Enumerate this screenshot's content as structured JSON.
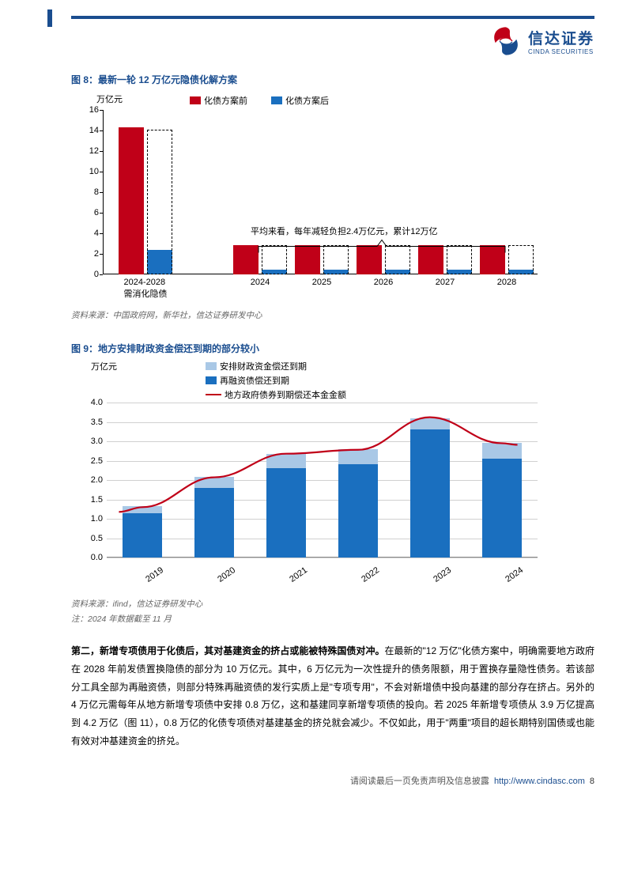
{
  "header": {
    "logo_cn": "信达证券",
    "logo_en": "CINDA SECURITIES",
    "logo_swirl_color1": "#c00018",
    "logo_swirl_color2": "#1a4d8f"
  },
  "fig8": {
    "title": "图 8：最新一轮 12 万亿元隐债化解方案",
    "y_unit": "万亿元",
    "legend": {
      "before": "化债方案前",
      "after": "化债方案后"
    },
    "colors": {
      "before": "#c00018",
      "after": "#1a6fbf",
      "dashed": "#000000"
    },
    "ylim": [
      0,
      16
    ],
    "ytick_step": 2,
    "categories": [
      "2024-2028\n需消化隐债",
      "2024",
      "2025",
      "2026",
      "2027",
      "2028"
    ],
    "before_values": [
      14.3,
      2.86,
      2.86,
      2.86,
      2.86,
      2.86
    ],
    "after_values": [
      2.4,
      0.5,
      0.5,
      0.5,
      0.5,
      0.5
    ],
    "dashed_values": [
      14.1,
      2.86,
      2.86,
      2.86,
      2.86,
      2.86
    ],
    "annotation": "平均来看，每年减轻负担2.4万亿元，累计12万亿",
    "source": "资料来源：中国政府网，新华社，信达证券研发中心"
  },
  "fig9": {
    "title": "图 9：地方安排财政资金偿还到期的部分较小",
    "y_unit": "万亿元",
    "legend": {
      "fiscal": "安排财政资金偿还到期",
      "refin": "再融资债偿还到期",
      "line": "地方政府债券到期偿还本金金额"
    },
    "colors": {
      "fiscal": "#a9c8e6",
      "refin": "#1a6fbf",
      "line": "#c00018"
    },
    "ylim": [
      0,
      4.0
    ],
    "ytick_step": 0.5,
    "categories": [
      "2019",
      "2020",
      "2021",
      "2022",
      "2023",
      "2024"
    ],
    "refin_values": [
      1.15,
      1.8,
      2.3,
      2.4,
      3.3,
      2.55
    ],
    "fiscal_values": [
      0.18,
      0.28,
      0.38,
      0.4,
      0.3,
      0.4
    ],
    "line_values": [
      1.3,
      2.07,
      2.68,
      2.78,
      3.62,
      2.95
    ],
    "source": "资料来源：ifind，信达证券研发中心",
    "note": "注：2024 年数据截至 11 月"
  },
  "body": {
    "bold": "第二，新增专项债用于化债后，其对基建资金的挤占或能被特殊国债对冲。",
    "text": "在最新的\"12 万亿\"化债方案中，明确需要地方政府在 2028 年前发债置换隐债的部分为 10 万亿元。其中，6 万亿元为一次性提升的债务限额，用于置换存量隐性债务。若该部分工具全部为再融资债，则部分特殊再融资债的发行实质上是\"专项专用\"，不会对新增债中投向基建的部分存在挤占。另外的 4 万亿元需每年从地方新增专项债中安排 0.8 万亿，这和基建同享新增专项债的投向。若 2025 年新增专项债从 3.9 万亿提高到 4.2 万亿（图 11），0.8 万亿的化债专项债对基建基金的挤兑就会减少。不仅如此，用于\"两重\"项目的超长期特别国债或也能有效对冲基建资金的挤兑。"
  },
  "footer": {
    "text": "请阅读最后一页免责声明及信息披露",
    "url": "http://www.cindasc.com",
    "page": "8"
  }
}
